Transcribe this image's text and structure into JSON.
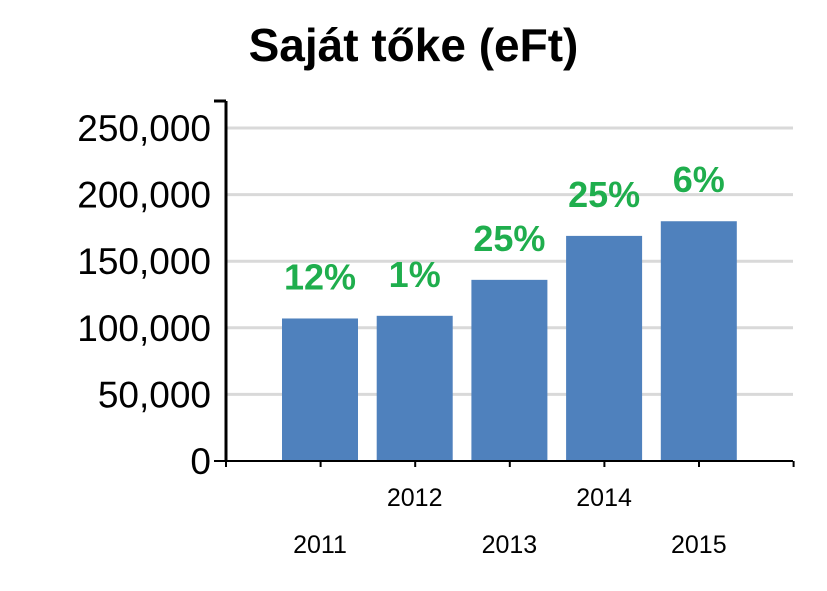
{
  "chart_data": {
    "type": "bar",
    "title": "Saját tőke (eFt)",
    "xlabel": "",
    "ylabel": "",
    "categories": [
      "2011",
      "2012",
      "2013",
      "2014",
      "2015"
    ],
    "values": [
      107000,
      109000,
      136000,
      169000,
      180000
    ],
    "data_labels": [
      "12%",
      "1%",
      "25%",
      "25%",
      "6%"
    ],
    "ylim": [
      0,
      250000
    ],
    "y_ticks": [
      "0",
      "50,000",
      "100,000",
      "150,000",
      "200,000",
      "250,000"
    ],
    "grid": true,
    "legend": "none",
    "colors": {
      "bar": "#4f81bd",
      "data_label": "#1fae4d",
      "grid": "#d9d9d9",
      "axis": "#000000"
    }
  }
}
